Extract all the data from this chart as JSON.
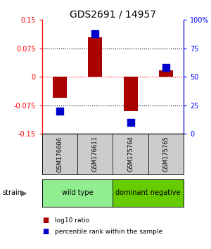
{
  "title": "GDS2691 / 14957",
  "samples": [
    "GSM176606",
    "GSM176611",
    "GSM175764",
    "GSM175765"
  ],
  "log10_ratio": [
    -0.055,
    0.105,
    -0.09,
    0.018
  ],
  "percentile_rank_pct": [
    20,
    88,
    10,
    58
  ],
  "groups": [
    {
      "label": "wild type",
      "samples": [
        0,
        1
      ],
      "color": "#90EE90"
    },
    {
      "label": "dominant negative",
      "samples": [
        2,
        3
      ],
      "color": "#66CC00"
    }
  ],
  "ylim": [
    -0.15,
    0.15
  ],
  "yticks_left": [
    -0.15,
    -0.075,
    0,
    0.075,
    0.15
  ],
  "yticks_right_pct": [
    0,
    25,
    50,
    75,
    100
  ],
  "bar_color_red": "#AA0000",
  "bar_color_blue": "#0000CC",
  "bar_width": 0.4,
  "dot_size": 45,
  "bg_color": "#ffffff",
  "sample_cell_color": "#cccccc",
  "grid_color": "#333333"
}
